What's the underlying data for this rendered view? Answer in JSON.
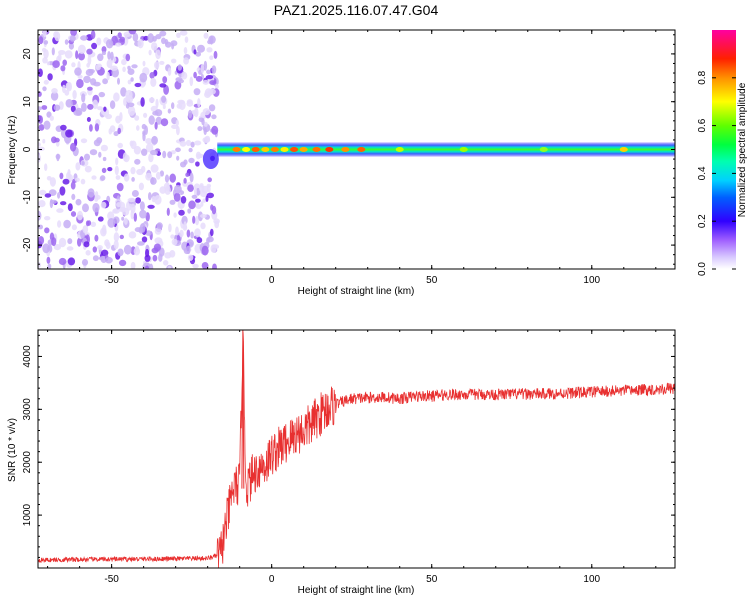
{
  "title": "PAZ1.2025.116.07.47.G04",
  "chart_data": [
    {
      "type": "heatmap",
      "xlabel": "Height of straight line (km)",
      "ylabel": "Frequency (Hz)",
      "xlim": [
        -73,
        126
      ],
      "ylim": [
        -25,
        25
      ],
      "xticks": [
        -50,
        0,
        50,
        100
      ],
      "yticks": [
        -20,
        -10,
        0,
        10,
        20
      ],
      "colorbar": {
        "label": "Normalized spectral amplitude",
        "range": [
          0,
          1
        ],
        "ticks": [
          0,
          0.2,
          0.4,
          0.6,
          0.8
        ],
        "colormap": [
          "#ffffff",
          "#b39cf0",
          "#7f00ff",
          "#0000ff",
          "#00c8ff",
          "#00ff80",
          "#80ff00",
          "#ffff00",
          "#ff8000",
          "#ff0000",
          "#ff007f"
        ]
      },
      "description_of_field": {
        "noise_region_x": [
          -73,
          -17
        ],
        "noise_region_freq": [
          -25,
          25
        ],
        "carrier_start_x": -17,
        "carrier_freq_center": 0,
        "carrier_width_hz": 1.5,
        "carrier_amplitude_peak": 0.95,
        "carrier_amplitude_plateau": 0.45
      }
    },
    {
      "type": "line",
      "xlabel": "Height of straight line (km)",
      "ylabel": "SNR (10 * v/v)",
      "xlim": [
        -73,
        126
      ],
      "ylim": [
        0,
        4500
      ],
      "xticks": [
        -50,
        0,
        50,
        100
      ],
      "yticks": [
        1000,
        2000,
        3000,
        4000
      ],
      "series": [
        {
          "color": "#e83030",
          "x": [
            -73,
            -60,
            -50,
            -40,
            -30,
            -20,
            -16,
            -14,
            -12,
            -10,
            -9,
            -8,
            -6,
            -4,
            -2,
            0,
            2,
            5,
            8,
            10,
            12,
            15,
            18,
            20,
            25,
            30,
            35,
            40,
            45,
            50,
            55,
            60,
            70,
            80,
            90,
            100,
            110,
            120,
            126
          ],
          "y": [
            150,
            160,
            165,
            170,
            175,
            185,
            250,
            900,
            1500,
            1600,
            4450,
            1500,
            1750,
            1900,
            1950,
            2150,
            2250,
            2400,
            2550,
            2600,
            2700,
            2900,
            3050,
            3100,
            3200,
            3220,
            3230,
            3200,
            3250,
            3250,
            3280,
            3280,
            3280,
            3290,
            3300,
            3330,
            3350,
            3380,
            3400
          ]
        }
      ]
    }
  ]
}
